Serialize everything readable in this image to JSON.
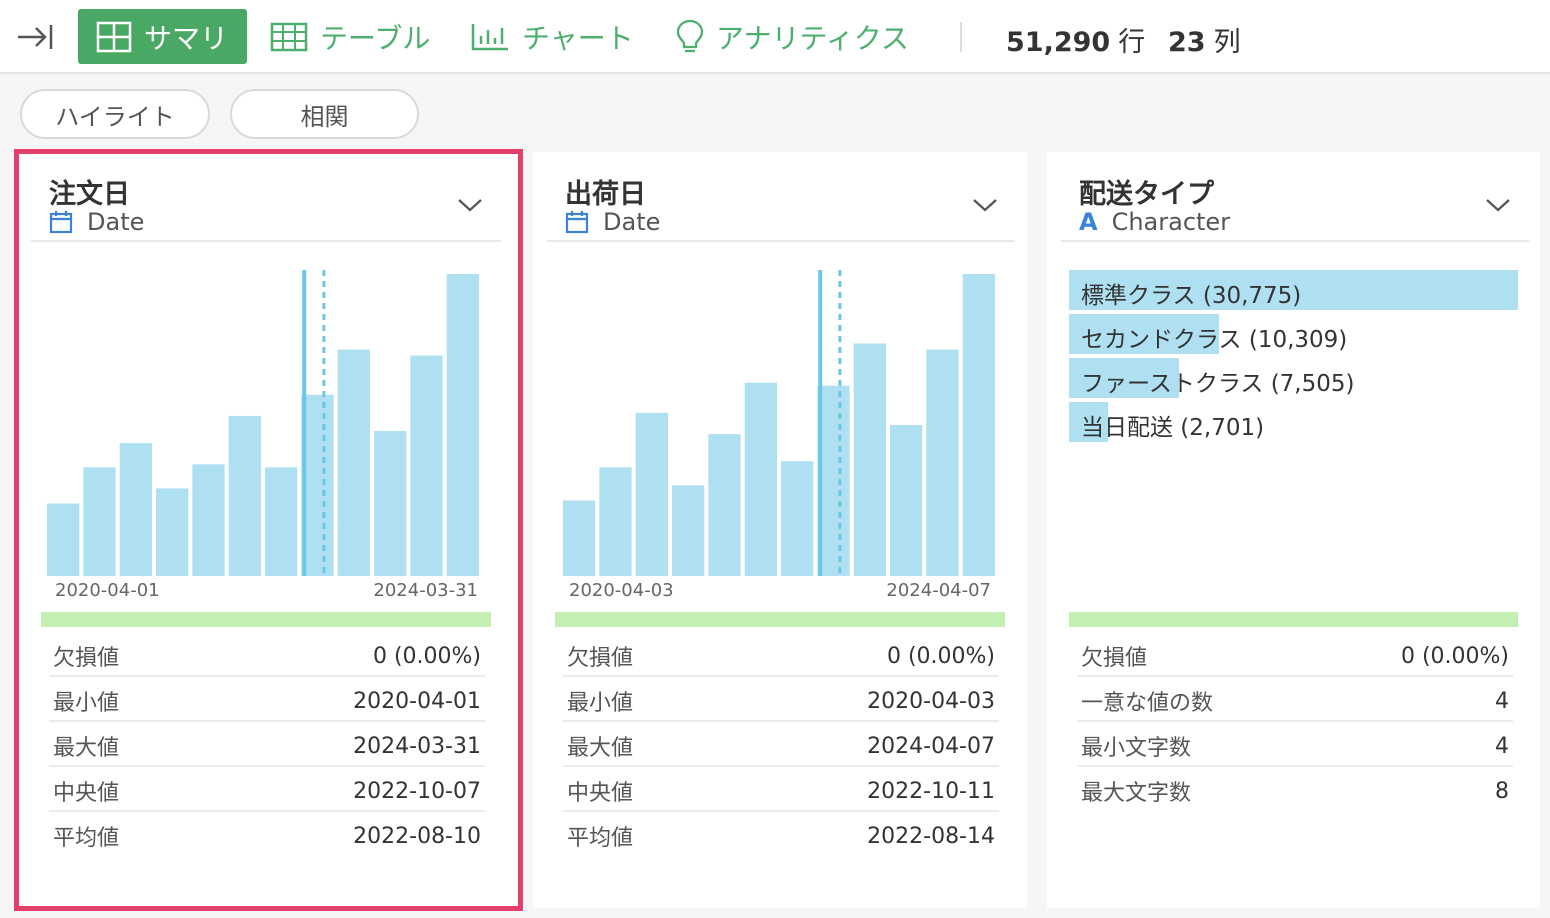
{
  "toolbar": {
    "tabs": {
      "summary": "サマリ",
      "table": "テーブル",
      "chart": "チャート",
      "analytics": "アナリティクス"
    },
    "row_count": "51,290",
    "row_unit": "行",
    "col_count": "23",
    "col_unit": "列"
  },
  "filters": {
    "highlight": "ハイライト",
    "correlation": "相関"
  },
  "colors": {
    "accent": "#4aa865",
    "bar": "#aee0f2",
    "valid": "#c3f0b2",
    "selected_border": "#e33f6c"
  },
  "cards": [
    {
      "title": "注文日",
      "type": "Date",
      "type_icon": "calendar-icon",
      "chart_data": {
        "type": "bar",
        "values": [
          24,
          36,
          44,
          29,
          37,
          53,
          36,
          60,
          75,
          48,
          73,
          100
        ],
        "ylim": [
          0,
          100
        ],
        "x_min_label": "2020-04-01",
        "x_max_label": "2024-03-31",
        "median_marker": 0.59,
        "mean_marker": 0.635
      },
      "stats": [
        {
          "label": "欠損値",
          "value": "0 (0.00%)"
        },
        {
          "label": "最小値",
          "value": "2020-04-01"
        },
        {
          "label": "最大値",
          "value": "2024-03-31"
        },
        {
          "label": "中央値",
          "value": "2022-10-07"
        },
        {
          "label": "平均値",
          "value": "2022-08-10"
        }
      ]
    },
    {
      "title": "出荷日",
      "type": "Date",
      "type_icon": "calendar-icon",
      "chart_data": {
        "type": "bar",
        "values": [
          25,
          36,
          54,
          30,
          47,
          64,
          38,
          63,
          77,
          50,
          75,
          100
        ],
        "ylim": [
          0,
          100
        ],
        "x_min_label": "2020-04-03",
        "x_max_label": "2024-04-07",
        "median_marker": 0.59,
        "mean_marker": 0.635
      },
      "stats": [
        {
          "label": "欠損値",
          "value": "0 (0.00%)"
        },
        {
          "label": "最小値",
          "value": "2020-04-03"
        },
        {
          "label": "最大値",
          "value": "2024-04-07"
        },
        {
          "label": "中央値",
          "value": "2022-10-11"
        },
        {
          "label": "平均値",
          "value": "2022-08-14"
        }
      ]
    },
    {
      "title": "配送タイプ",
      "type": "Character",
      "type_icon": "character-a-icon",
      "categories": [
        {
          "label": "標準クラス (30,775)",
          "count": 30775
        },
        {
          "label": "セカンドクラス (10,309)",
          "count": 10309
        },
        {
          "label": "ファーストクラス (7,505)",
          "count": 7505
        },
        {
          "label": "当日配送 (2,701)",
          "count": 2701
        }
      ],
      "stats": [
        {
          "label": "欠損値",
          "value": "0 (0.00%)"
        },
        {
          "label": "一意な値の数",
          "value": "4"
        },
        {
          "label": "最小文字数",
          "value": "4"
        },
        {
          "label": "最大文字数",
          "value": "8"
        }
      ]
    }
  ]
}
